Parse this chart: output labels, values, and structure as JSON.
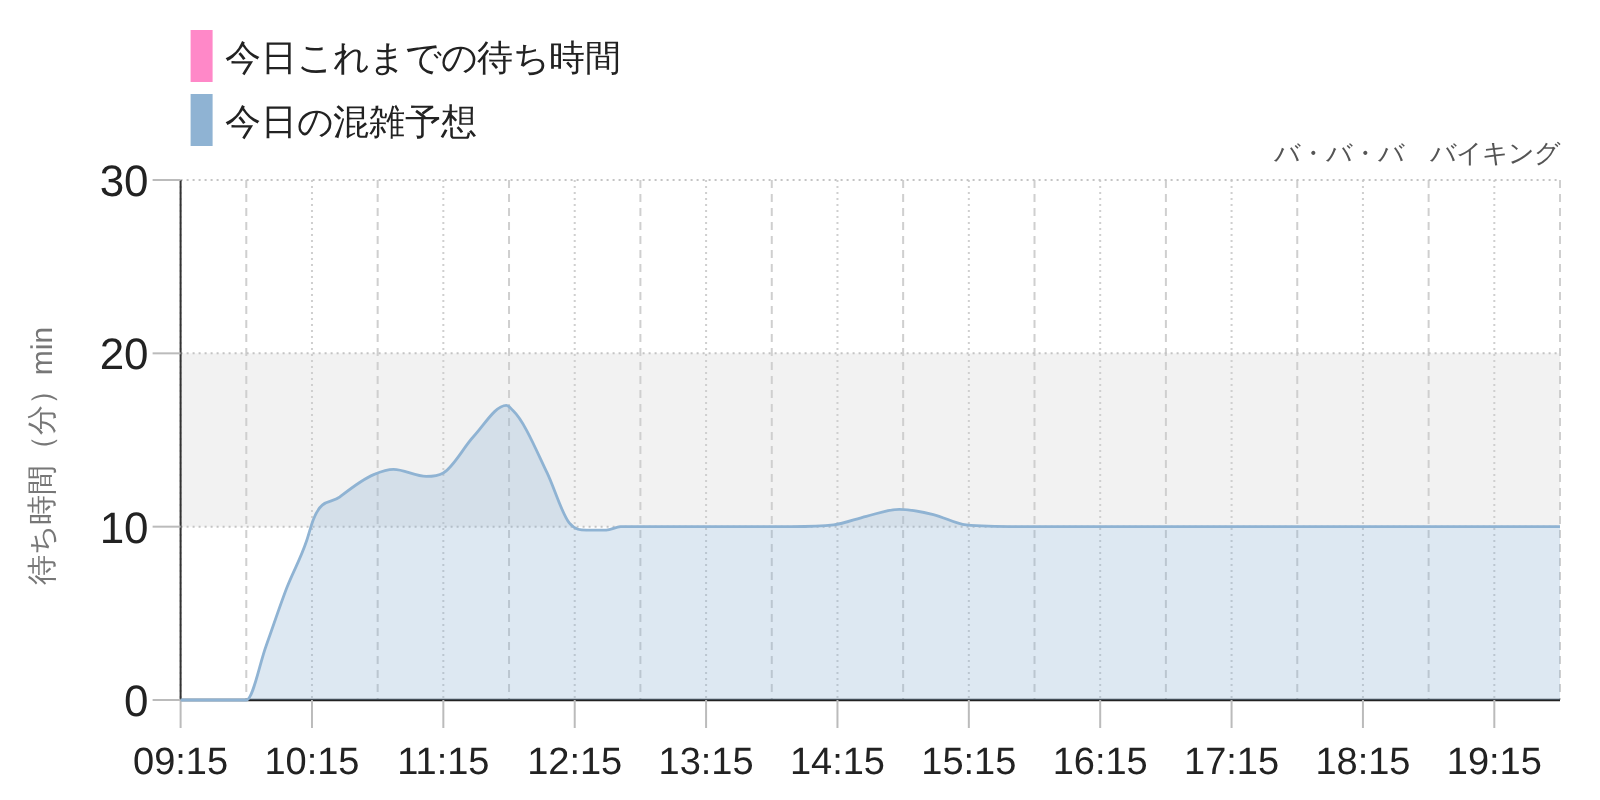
{
  "chart_data": {
    "type": "area",
    "title": "バ・バ・バ　バイキング",
    "ylabel": "待ち時間（分）min",
    "series": [
      {
        "name": "今日これまでの待ち時間",
        "color": "#ff88c8"
      },
      {
        "name": "今日の混雑予想",
        "color": "#8fb3d3",
        "x": [
          9.25,
          9.75,
          9.9,
          10.06,
          10.21,
          10.26,
          10.46,
          10.72,
          10.87,
          11.12,
          11.25,
          11.48,
          11.73,
          11.78,
          12.04,
          12.21,
          12.34,
          12.49,
          12.6,
          13.0,
          13.5,
          13.9,
          14.22,
          14.47,
          14.72,
          14.98,
          15.23,
          15.66,
          16.0,
          17.0,
          18.0,
          19.0,
          19.75
        ],
        "values": [
          0,
          0,
          3.1,
          6.5,
          9.2,
          10.4,
          11.7,
          13,
          13.3,
          12.9,
          13.1,
          15.2,
          17,
          16.7,
          13.1,
          10.2,
          9.8,
          9.8,
          10,
          10,
          10,
          10,
          10.1,
          10.6,
          11,
          10.7,
          10.1,
          10,
          10,
          10,
          10,
          10,
          10
        ]
      }
    ],
    "xlim": [
      9.25,
      19.75
    ],
    "xticks": [
      {
        "value": 9.25,
        "label": "09:15"
      },
      {
        "value": 9.75,
        "label": null
      },
      {
        "value": 10.25,
        "label": "10:15"
      },
      {
        "value": 10.75,
        "label": null
      },
      {
        "value": 11.25,
        "label": "11:15"
      },
      {
        "value": 11.75,
        "label": null
      },
      {
        "value": 12.25,
        "label": "12:15"
      },
      {
        "value": 12.75,
        "label": null
      },
      {
        "value": 13.25,
        "label": "13:15"
      },
      {
        "value": 13.75,
        "label": null
      },
      {
        "value": 14.25,
        "label": "14:15"
      },
      {
        "value": 14.75,
        "label": null
      },
      {
        "value": 15.25,
        "label": "15:15"
      },
      {
        "value": 15.75,
        "label": null
      },
      {
        "value": 16.25,
        "label": "16:15"
      },
      {
        "value": 16.75,
        "label": null
      },
      {
        "value": 17.25,
        "label": "17:15"
      },
      {
        "value": 17.75,
        "label": null
      },
      {
        "value": 18.25,
        "label": "18:15"
      },
      {
        "value": 18.75,
        "label": null
      },
      {
        "value": 19.25,
        "label": "19:15"
      },
      {
        "value": 19.75,
        "label": null
      }
    ],
    "ylim": [
      0,
      30
    ],
    "yticks": [
      0,
      10,
      20,
      30
    ],
    "bands": [
      {
        "axis": "y",
        "from": 10,
        "to": 20,
        "color": "#f2f2f2"
      }
    ],
    "grid": true,
    "legend": "top left"
  }
}
